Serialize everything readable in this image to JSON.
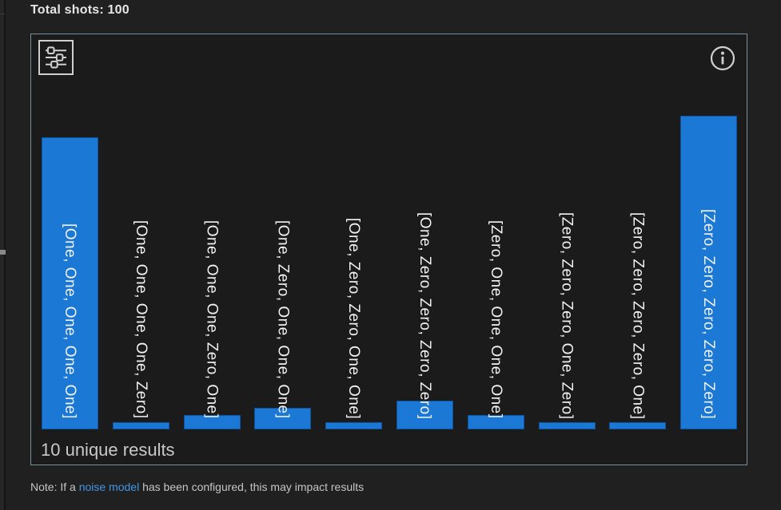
{
  "header": {
    "total_shots": "Total shots: 100"
  },
  "chart_panel": {
    "unique_results": "10 unique results"
  },
  "icons": {
    "settings": "sliders-icon",
    "info": "info-icon"
  },
  "chart_data": {
    "type": "bar",
    "title": "",
    "categories": [
      "[One, One, One, One, One]",
      "[One, One, One, One, Zero]",
      "[One, One, One, Zero, One]",
      "[One, Zero, One, One, One]",
      "[One, Zero, Zero, One, One]",
      "[One, Zero, Zero, Zero, Zero]",
      "[Zero, One, One, One, One]",
      "[Zero, Zero, Zero, One, Zero]",
      "[Zero, Zero, Zero, Zero, One]",
      "[Zero, Zero, Zero, Zero, Zero]"
    ],
    "values": [
      41,
      1,
      2,
      3,
      1,
      4,
      2,
      1,
      1,
      44
    ],
    "total_shots": 100,
    "unique_results_count": 10,
    "ylim": [
      0,
      44
    ],
    "grid": false,
    "legend": false,
    "bar_color": "#1b78d4",
    "label_style": "vertical-inside"
  },
  "note": {
    "prefix": "Note: If a ",
    "link": "noise model",
    "suffix": " has been configured, this may impact results"
  },
  "colors": {
    "bar": "#1b78d4",
    "panel_border": "#74909e",
    "link": "#4296e6",
    "panel_bg": "#1b1b1b",
    "page_bg": "#202020"
  }
}
